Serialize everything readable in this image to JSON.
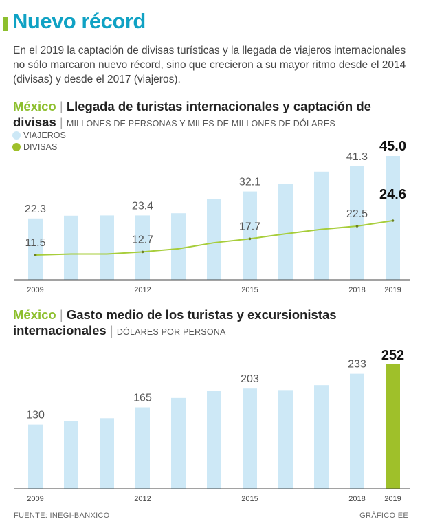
{
  "title": "Nuevo récord",
  "intro": "En el 2019 la captación de divisas turísticas y la llegada de viajeros internacionales no sólo marcaron nuevo récord, sino que crecieron a su mayor ritmo desde el 2014 (divisas) y desde el 2017 (viajeros).",
  "colors": {
    "accent": "#8dbf2e",
    "title": "#10a2c4",
    "bar": "#cde8f6",
    "line": "#a7cd3a",
    "highlight": "#9fc02a"
  },
  "chart1": {
    "country": "México",
    "title": "Llegada de turistas internacionales y captación de divisas",
    "units": "MILLONES DE PERSONAS Y MILES DE MILLONES DE DÓLARES",
    "legend": {
      "viajeros": "VIAJEROS",
      "divisas": "DIVISAS"
    }
  },
  "chart2": {
    "country": "México",
    "title": "Gasto medio de los turistas y excursionistas internacionales",
    "units": "DÓLARES POR PERSONA"
  },
  "chart_data": [
    {
      "type": "bar",
      "title": "Llegada de turistas internacionales y captación de divisas",
      "categories": [
        "2009",
        "2010",
        "2011",
        "2012",
        "2013",
        "2014",
        "2015",
        "2016",
        "2017",
        "2018",
        "2019"
      ],
      "tick_labels": [
        "2009",
        "2012",
        "2015",
        "2018",
        "2019"
      ],
      "series": [
        {
          "name": "VIAJEROS",
          "kind": "bar",
          "values": [
            22.3,
            23.3,
            23.4,
            23.4,
            24.2,
            29.3,
            32.1,
            35.0,
            39.3,
            41.3,
            45.0
          ],
          "labels": {
            "0": "22.3",
            "3": "23.4",
            "6": "32.1",
            "9": "41.3",
            "10": "45.0"
          }
        },
        {
          "name": "DIVISAS",
          "kind": "line",
          "values": [
            11.5,
            11.9,
            11.9,
            12.7,
            13.9,
            16.2,
            17.7,
            19.6,
            21.3,
            22.5,
            24.6
          ],
          "labels": {
            "0": "11.5",
            "3": "12.7",
            "6": "17.7",
            "9": "22.5",
            "10": "24.6"
          }
        }
      ],
      "ylim": [
        0,
        45.0
      ]
    },
    {
      "type": "bar",
      "title": "Gasto medio de los turistas y excursionistas internacionales",
      "categories": [
        "2009",
        "2010",
        "2011",
        "2012",
        "2013",
        "2014",
        "2015",
        "2016",
        "2017",
        "2018",
        "2019"
      ],
      "tick_labels": [
        "2009",
        "2012",
        "2015",
        "2018",
        "2019"
      ],
      "values": [
        130,
        137,
        143,
        165,
        184,
        198,
        203,
        200,
        210,
        233,
        252
      ],
      "labels": {
        "0": "130",
        "3": "165",
        "6": "203",
        "9": "233",
        "10": "252"
      },
      "ylim": [
        0,
        252
      ]
    }
  ],
  "footer": {
    "source": "FUENTE: INEGI-BANXICO",
    "credit": "GRÁFICO EE"
  }
}
